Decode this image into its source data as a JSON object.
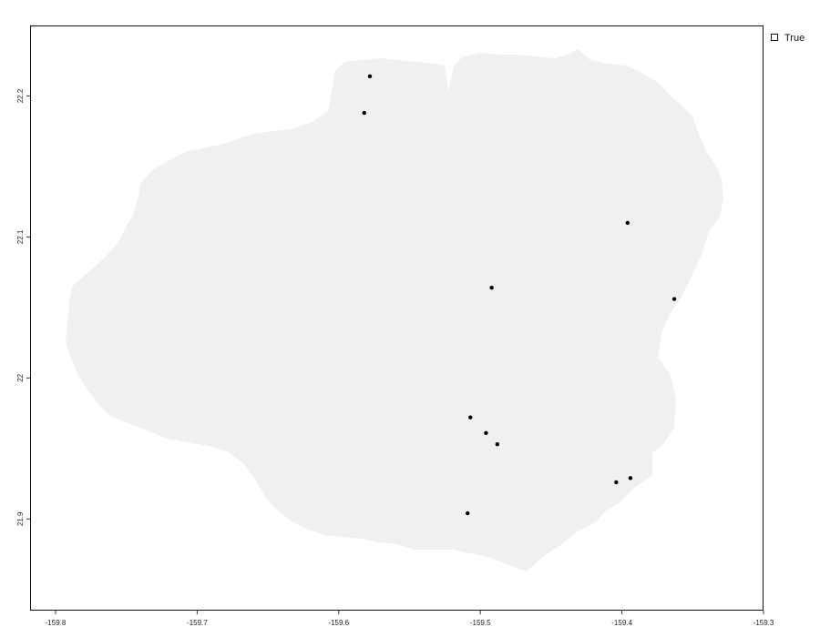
{
  "chart_data": {
    "type": "scatter",
    "title": "",
    "xlabel": "",
    "ylabel": "",
    "xlim": [
      -159.818,
      -159.3
    ],
    "ylim": [
      21.835,
      22.25
    ],
    "x_ticks": [
      -159.8,
      -159.7,
      -159.6,
      -159.5,
      -159.4,
      -159.3
    ],
    "x_tick_labels": [
      "-159.8",
      "-159.7",
      "-159.6",
      "-159.5",
      "-159.4",
      "-159.3"
    ],
    "y_ticks": [
      21.9,
      22.0,
      22.1,
      22.2
    ],
    "y_tick_labels": [
      "21.9",
      "22",
      "22.1",
      "22.2"
    ],
    "grid": false,
    "background_shape": "island-raster",
    "legend": {
      "position": "top-right",
      "entries": [
        {
          "label": "True",
          "marker": "hollow-square"
        }
      ]
    },
    "series": [
      {
        "name": "True",
        "color": "#000000",
        "points": [
          {
            "x": -159.578,
            "y": 22.214
          },
          {
            "x": -159.582,
            "y": 22.188
          },
          {
            "x": -159.396,
            "y": 22.11
          },
          {
            "x": -159.492,
            "y": 22.064
          },
          {
            "x": -159.363,
            "y": 22.056
          },
          {
            "x": -159.507,
            "y": 21.972
          },
          {
            "x": -159.496,
            "y": 21.961
          },
          {
            "x": -159.488,
            "y": 21.953
          },
          {
            "x": -159.394,
            "y": 21.929
          },
          {
            "x": -159.404,
            "y": 21.926
          },
          {
            "x": -159.509,
            "y": 21.904
          }
        ]
      }
    ]
  },
  "colors": {
    "land": "#f0f0f0",
    "panel_border": "#111111",
    "point": "#000000"
  }
}
